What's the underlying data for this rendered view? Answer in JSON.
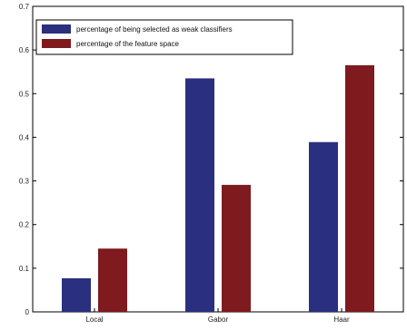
{
  "chart_data": {
    "type": "bar",
    "title": "",
    "xlabel": "",
    "ylabel": "",
    "categories": [
      "Local",
      "Gabor",
      "Haar"
    ],
    "series": [
      {
        "name": "percentage of being selected as weak classifiers",
        "color": "#2a2f7f",
        "values": [
          0.077,
          0.535,
          0.389
        ]
      },
      {
        "name": "percentage of the feature space",
        "color": "#7f1a1f",
        "values": [
          0.145,
          0.291,
          0.565
        ]
      }
    ],
    "ylim": [
      0,
      0.7
    ],
    "yticks": [
      "0",
      "0.1",
      "0.2",
      "0.3",
      "0.4",
      "0.5",
      "0.6",
      "0.7"
    ],
    "grid": false,
    "legend_position": "top-left"
  }
}
